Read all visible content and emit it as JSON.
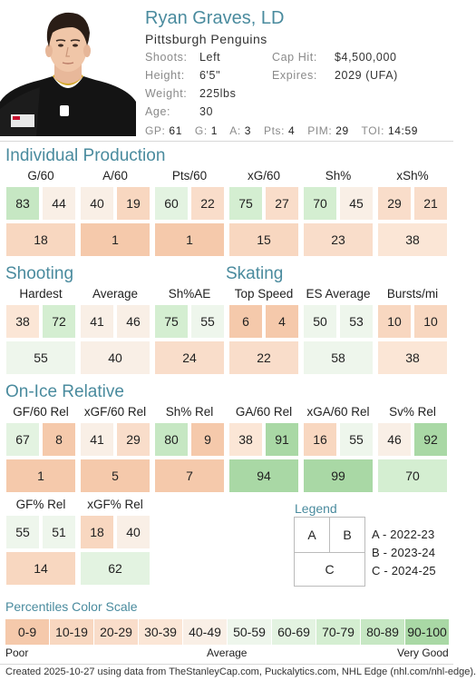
{
  "player": {
    "name": "Ryan Graves, LD",
    "team": "Pittsburgh Penguins",
    "shoots_key": "Shoots:",
    "shoots": "Left",
    "height_key": "Height:",
    "height": "6'5\"",
    "weight_key": "Weight:",
    "weight": "225lbs",
    "age_key": "Age:",
    "age": "30",
    "caphit_key": "Cap Hit:",
    "caphit": "$4,500,000",
    "expires_key": "Expires:",
    "expires": "2029 (UFA)",
    "jersey_logo": "F.N.B."
  },
  "statline": {
    "gp_key": "GP:",
    "gp": "61",
    "g_key": "G:",
    "g": "1",
    "a_key": "A:",
    "a": "3",
    "pts_key": "Pts:",
    "pts": "4",
    "pim_key": "PIM:",
    "pim": "29",
    "toi_key": "TOI:",
    "toi": "14:59"
  },
  "colors": {
    "accent": "#4a8b9e",
    "green_dark": "#a9d8a5",
    "green_mid": "#c6e7c3",
    "green_light": "#e3f3e1",
    "neutral": "#f6f2ec",
    "orange_light": "#fbe6d6",
    "orange_mid": "#f8d7c0",
    "orange_dark": "#f5c9ab"
  },
  "sections": {
    "individual": {
      "title": "Individual Production",
      "stats": [
        {
          "label": "G/60",
          "a": "83",
          "b": "44",
          "c": "18"
        },
        {
          "label": "A/60",
          "a": "40",
          "b": "19",
          "c": "1"
        },
        {
          "label": "Pts/60",
          "a": "60",
          "b": "22",
          "c": "1"
        },
        {
          "label": "xG/60",
          "a": "75",
          "b": "27",
          "c": "15"
        },
        {
          "label": "Sh%",
          "a": "70",
          "b": "45",
          "c": "23"
        },
        {
          "label": "xSh%",
          "a": "29",
          "b": "21",
          "c": "38"
        }
      ]
    },
    "shooting": {
      "title": "Shooting",
      "stats": [
        {
          "label": "Hardest",
          "a": "38",
          "b": "72",
          "c": "55"
        },
        {
          "label": "Average",
          "a": "41",
          "b": "46",
          "c": "40"
        },
        {
          "label": "Sh%AE",
          "a": "75",
          "b": "55",
          "c": "24"
        }
      ]
    },
    "skating": {
      "title": "Skating",
      "stats": [
        {
          "label": "Top Speed",
          "a": "6",
          "b": "4",
          "c": "22"
        },
        {
          "label": "ES Average",
          "a": "50",
          "b": "53",
          "c": "58"
        },
        {
          "label": "Bursts/mi",
          "a": "10",
          "b": "10",
          "c": "38"
        }
      ]
    },
    "onice": {
      "title": "On-Ice Relative",
      "stats": [
        {
          "label": "GF/60 Rel",
          "a": "67",
          "b": "8",
          "c": "1"
        },
        {
          "label": "xGF/60 Rel",
          "a": "41",
          "b": "29",
          "c": "5"
        },
        {
          "label": "Sh% Rel",
          "a": "80",
          "b": "9",
          "c": "7"
        },
        {
          "label": "GA/60 Rel",
          "a": "38",
          "b": "91",
          "c": "94"
        },
        {
          "label": "xGA/60 Rel",
          "a": "16",
          "b": "55",
          "c": "99"
        },
        {
          "label": "Sv% Rel",
          "a": "46",
          "b": "92",
          "c": "70"
        },
        {
          "label": "GF% Rel",
          "a": "55",
          "b": "51",
          "c": "14"
        },
        {
          "label": "xGF% Rel",
          "a": "18",
          "b": "40",
          "c": "62"
        }
      ]
    }
  },
  "legend": {
    "title": "Legend",
    "a_box": "A",
    "b_box": "B",
    "c_box": "C",
    "a_text": "A - 2022-23",
    "b_text": "B - 2023-24",
    "c_text": "C - 2024-25"
  },
  "scale": {
    "title": "Percentiles Color Scale",
    "ranges": [
      "0-9",
      "10-19",
      "20-29",
      "30-39",
      "40-49",
      "50-59",
      "60-69",
      "70-79",
      "80-89",
      "90-100"
    ],
    "poor": "Poor",
    "average": "Average",
    "very_good": "Very Good"
  },
  "footer": "Created 2025-10-27 using data from TheStanleyCap.com, Puckalytics.com, NHL Edge (nhl.com/nhl-edge)."
}
